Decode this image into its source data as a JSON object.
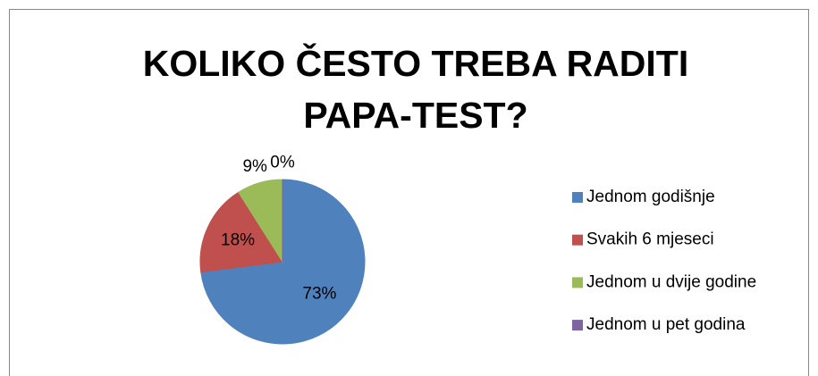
{
  "chart_data": {
    "type": "pie",
    "title": "KOLIKO ČESTO TREBA RADITI PAPA-TEST?",
    "categories": [
      "Jednom godišnje",
      "Svakih 6 mjeseci",
      "Jednom u dvije godine",
      "Jednom u pet godina"
    ],
    "values": [
      73,
      18,
      9,
      0
    ],
    "value_labels": [
      "73%",
      "18%",
      "9%",
      "0%"
    ],
    "colors": [
      "#4f81bd",
      "#c0504d",
      "#9bbb59",
      "#8064a2"
    ],
    "legend": "right"
  }
}
